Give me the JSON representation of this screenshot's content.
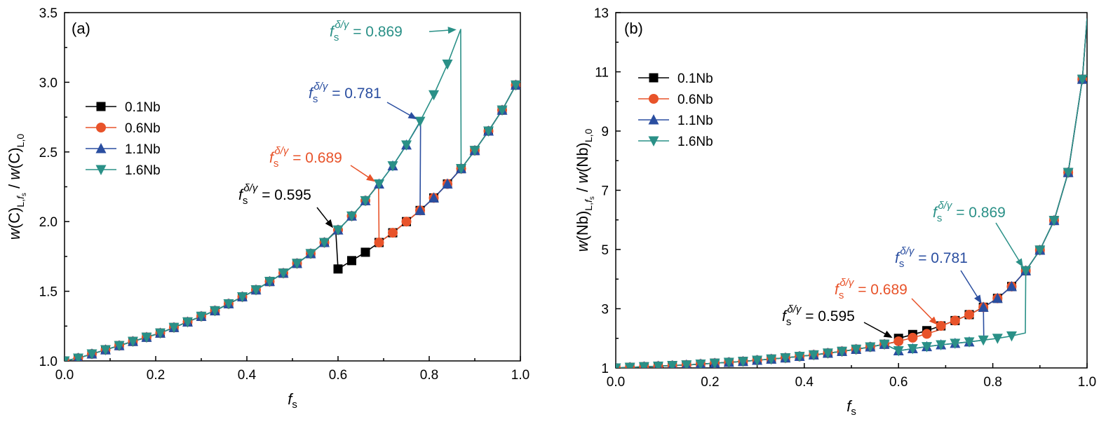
{
  "chart_data": [
    {
      "type": "line",
      "panel_label": "(a)",
      "xlabel": "f",
      "xlabel_sub": "s",
      "ylabel": "w(C)_L,fs / w(C)_L,0",
      "xlim": [
        0.0,
        1.0
      ],
      "ylim": [
        1.0,
        3.5
      ],
      "xticks": [
        "0.0",
        "0.2",
        "0.4",
        "0.6",
        "0.8",
        "1.0"
      ],
      "yticks": [
        "1.0",
        "1.5",
        "2.0",
        "2.5",
        "3.0",
        "3.5"
      ],
      "legend_position": "upper-left",
      "series": [
        {
          "name": "0.1Nb",
          "color": "#000000",
          "marker": "square",
          "x": [
            0.0,
            0.03,
            0.06,
            0.09,
            0.12,
            0.15,
            0.18,
            0.21,
            0.24,
            0.27,
            0.3,
            0.33,
            0.36,
            0.39,
            0.42,
            0.45,
            0.48,
            0.51,
            0.54,
            0.57,
            0.595,
            0.6,
            0.63,
            0.66,
            0.69,
            0.72,
            0.75,
            0.78,
            0.81,
            0.84,
            0.87,
            0.9,
            0.93,
            0.96,
            0.99
          ],
          "y": [
            1.0,
            1.02,
            1.05,
            1.08,
            1.11,
            1.14,
            1.17,
            1.2,
            1.24,
            1.28,
            1.32,
            1.36,
            1.41,
            1.46,
            1.51,
            1.57,
            1.63,
            1.7,
            1.77,
            1.85,
            1.93,
            1.66,
            1.72,
            1.78,
            1.85,
            1.92,
            2.0,
            2.08,
            2.17,
            2.27,
            2.38,
            2.51,
            2.65,
            2.8,
            2.98
          ]
        },
        {
          "name": "0.6Nb",
          "color": "#e8532a",
          "marker": "circle",
          "x": [
            0.0,
            0.03,
            0.06,
            0.09,
            0.12,
            0.15,
            0.18,
            0.21,
            0.24,
            0.27,
            0.3,
            0.33,
            0.36,
            0.39,
            0.42,
            0.45,
            0.48,
            0.51,
            0.54,
            0.57,
            0.6,
            0.63,
            0.66,
            0.689,
            0.69,
            0.72,
            0.75,
            0.78,
            0.81,
            0.84,
            0.87,
            0.9,
            0.93,
            0.96,
            0.99
          ],
          "y": [
            1.0,
            1.02,
            1.05,
            1.08,
            1.11,
            1.14,
            1.17,
            1.2,
            1.24,
            1.28,
            1.32,
            1.36,
            1.41,
            1.46,
            1.51,
            1.57,
            1.63,
            1.7,
            1.77,
            1.85,
            1.94,
            2.04,
            2.15,
            2.27,
            1.85,
            1.92,
            2.0,
            2.08,
            2.17,
            2.27,
            2.38,
            2.51,
            2.65,
            2.8,
            2.98
          ]
        },
        {
          "name": "1.1Nb",
          "color": "#2a4ea0",
          "marker": "triangle-up",
          "x": [
            0.0,
            0.03,
            0.06,
            0.09,
            0.12,
            0.15,
            0.18,
            0.21,
            0.24,
            0.27,
            0.3,
            0.33,
            0.36,
            0.39,
            0.42,
            0.45,
            0.48,
            0.51,
            0.54,
            0.57,
            0.6,
            0.63,
            0.66,
            0.69,
            0.72,
            0.75,
            0.781,
            0.78,
            0.81,
            0.84,
            0.87,
            0.9,
            0.93,
            0.96,
            0.99
          ],
          "y": [
            1.0,
            1.02,
            1.05,
            1.08,
            1.11,
            1.14,
            1.17,
            1.2,
            1.24,
            1.28,
            1.32,
            1.36,
            1.41,
            1.46,
            1.51,
            1.57,
            1.63,
            1.7,
            1.77,
            1.85,
            1.94,
            2.04,
            2.15,
            2.27,
            2.4,
            2.55,
            2.72,
            2.08,
            2.17,
            2.27,
            2.38,
            2.51,
            2.65,
            2.8,
            2.98
          ]
        },
        {
          "name": "1.6Nb",
          "color": "#2a9087",
          "marker": "triangle-down",
          "x": [
            0.0,
            0.03,
            0.06,
            0.09,
            0.12,
            0.15,
            0.18,
            0.21,
            0.24,
            0.27,
            0.3,
            0.33,
            0.36,
            0.39,
            0.42,
            0.45,
            0.48,
            0.51,
            0.54,
            0.57,
            0.6,
            0.63,
            0.66,
            0.69,
            0.72,
            0.75,
            0.78,
            0.81,
            0.84,
            0.869,
            0.87,
            0.9,
            0.93,
            0.96,
            0.99
          ],
          "y": [
            1.0,
            1.02,
            1.05,
            1.08,
            1.11,
            1.14,
            1.17,
            1.2,
            1.24,
            1.28,
            1.32,
            1.36,
            1.41,
            1.46,
            1.51,
            1.57,
            1.63,
            1.7,
            1.77,
            1.85,
            1.94,
            2.04,
            2.15,
            2.27,
            2.4,
            2.55,
            2.72,
            2.91,
            3.13,
            3.38,
            2.38,
            2.51,
            2.65,
            2.8,
            2.98
          ]
        }
      ],
      "annotations": [
        {
          "base": "f",
          "sub": "s",
          "sup": "δ/γ",
          "value": "= 0.595",
          "color": "#000000",
          "x": 0.595,
          "y": 1.93
        },
        {
          "base": "f",
          "sub": "s",
          "sup": "δ/γ",
          "value": "= 0.689",
          "color": "#e8532a",
          "x": 0.689,
          "y": 2.27
        },
        {
          "base": "f",
          "sub": "s",
          "sup": "δ/γ",
          "value": "= 0.781",
          "color": "#2a4ea0",
          "x": 0.781,
          "y": 2.72
        },
        {
          "base": "f",
          "sub": "s",
          "sup": "δ/γ",
          "value": "= 0.869",
          "color": "#2a9087",
          "x": 0.869,
          "y": 3.38
        }
      ]
    },
    {
      "type": "line",
      "panel_label": "(b)",
      "xlabel": "f",
      "xlabel_sub": "s",
      "ylabel": "w(Nb)_L,fs / w(Nb)_L,0",
      "xlim": [
        0.0,
        1.0
      ],
      "ylim": [
        1,
        13
      ],
      "xticks": [
        "0.0",
        "0.2",
        "0.4",
        "0.6",
        "0.8",
        "1.0"
      ],
      "yticks": [
        "1",
        "3",
        "5",
        "7",
        "9",
        "11",
        "13"
      ],
      "legend_position": "upper-left",
      "series": [
        {
          "name": "0.1Nb",
          "color": "#000000",
          "marker": "square",
          "x": [
            0.0,
            0.03,
            0.06,
            0.09,
            0.12,
            0.15,
            0.18,
            0.21,
            0.24,
            0.27,
            0.3,
            0.33,
            0.36,
            0.39,
            0.42,
            0.45,
            0.48,
            0.51,
            0.54,
            0.57,
            0.595,
            0.6,
            0.63,
            0.66,
            0.69,
            0.72,
            0.75,
            0.78,
            0.81,
            0.84,
            0.87,
            0.9,
            0.93,
            0.96,
            0.99,
            1.0
          ],
          "y": [
            1.0,
            1.02,
            1.04,
            1.06,
            1.08,
            1.1,
            1.13,
            1.16,
            1.19,
            1.22,
            1.26,
            1.3,
            1.34,
            1.39,
            1.44,
            1.5,
            1.56,
            1.63,
            1.71,
            1.8,
            1.88,
            2.0,
            2.13,
            2.26,
            2.42,
            2.6,
            2.8,
            3.05,
            3.35,
            3.75,
            4.28,
            4.98,
            5.98,
            7.6,
            10.75,
            12.8
          ]
        },
        {
          "name": "0.6Nb",
          "color": "#e8532a",
          "marker": "circle",
          "x": [
            0.0,
            0.03,
            0.06,
            0.09,
            0.12,
            0.15,
            0.18,
            0.21,
            0.24,
            0.27,
            0.3,
            0.33,
            0.36,
            0.39,
            0.42,
            0.45,
            0.48,
            0.51,
            0.54,
            0.57,
            0.6,
            0.63,
            0.66,
            0.689,
            0.69,
            0.72,
            0.75,
            0.78,
            0.81,
            0.84,
            0.87,
            0.9,
            0.93,
            0.96,
            0.99,
            1.0
          ],
          "y": [
            1.0,
            1.02,
            1.04,
            1.06,
            1.08,
            1.1,
            1.13,
            1.16,
            1.19,
            1.22,
            1.26,
            1.3,
            1.34,
            1.39,
            1.44,
            1.5,
            1.56,
            1.63,
            1.71,
            1.8,
            1.9,
            2.02,
            2.15,
            2.3,
            2.42,
            2.6,
            2.8,
            3.05,
            3.35,
            3.75,
            4.28,
            4.98,
            5.98,
            7.6,
            10.75,
            12.8
          ]
        },
        {
          "name": "1.1Nb",
          "color": "#2a4ea0",
          "marker": "triangle-up",
          "x": [
            0.0,
            0.03,
            0.06,
            0.09,
            0.12,
            0.15,
            0.18,
            0.21,
            0.24,
            0.27,
            0.3,
            0.33,
            0.36,
            0.39,
            0.42,
            0.45,
            0.48,
            0.51,
            0.54,
            0.57,
            0.6,
            0.63,
            0.66,
            0.69,
            0.72,
            0.75,
            0.781,
            0.78,
            0.81,
            0.84,
            0.87,
            0.9,
            0.93,
            0.96,
            0.99,
            1.0
          ],
          "y": [
            1.0,
            1.02,
            1.04,
            1.06,
            1.08,
            1.1,
            1.13,
            1.16,
            1.19,
            1.22,
            1.26,
            1.3,
            1.34,
            1.39,
            1.44,
            1.5,
            1.56,
            1.63,
            1.71,
            1.8,
            1.58,
            1.65,
            1.72,
            1.78,
            1.83,
            1.88,
            1.94,
            3.05,
            3.35,
            3.75,
            4.28,
            4.98,
            5.98,
            7.6,
            10.75,
            12.8
          ]
        },
        {
          "name": "1.6Nb",
          "color": "#2a9087",
          "marker": "triangle-down",
          "x": [
            0.0,
            0.03,
            0.06,
            0.09,
            0.12,
            0.15,
            0.18,
            0.21,
            0.24,
            0.27,
            0.3,
            0.33,
            0.36,
            0.39,
            0.42,
            0.45,
            0.48,
            0.51,
            0.54,
            0.57,
            0.6,
            0.63,
            0.66,
            0.69,
            0.72,
            0.75,
            0.78,
            0.81,
            0.84,
            0.869,
            0.87,
            0.9,
            0.93,
            0.96,
            0.99,
            1.0
          ],
          "y": [
            1.0,
            1.02,
            1.04,
            1.06,
            1.08,
            1.1,
            1.13,
            1.16,
            1.19,
            1.22,
            1.26,
            1.3,
            1.34,
            1.39,
            1.44,
            1.5,
            1.56,
            1.63,
            1.71,
            1.8,
            1.58,
            1.65,
            1.72,
            1.78,
            1.83,
            1.88,
            1.94,
            2.0,
            2.08,
            2.18,
            4.28,
            4.98,
            5.98,
            7.6,
            10.75,
            12.8
          ]
        }
      ],
      "annotations": [
        {
          "base": "f",
          "sub": "s",
          "sup": "δ/γ",
          "value": "= 0.595",
          "color": "#000000",
          "x": 0.595,
          "y": 1.95
        },
        {
          "base": "f",
          "sub": "s",
          "sup": "δ/γ",
          "value": "= 0.689",
          "color": "#e8532a",
          "x": 0.689,
          "y": 2.35
        },
        {
          "base": "f",
          "sub": "s",
          "sup": "δ/γ",
          "value": "= 0.781",
          "color": "#2a4ea0",
          "x": 0.781,
          "y": 3.05
        },
        {
          "base": "f",
          "sub": "s",
          "sup": "δ/γ",
          "value": "= 0.869",
          "color": "#2a9087",
          "x": 0.869,
          "y": 4.28
        }
      ]
    }
  ]
}
